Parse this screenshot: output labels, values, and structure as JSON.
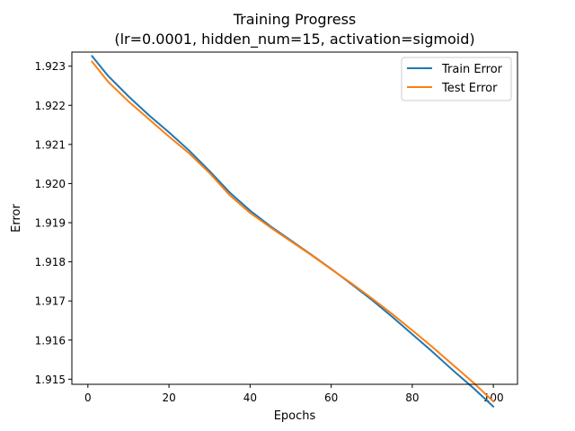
{
  "chart_data": {
    "type": "line",
    "title": "Training Progress",
    "subtitle": "(lr=0.0001, hidden_num=15, activation=sigmoid)",
    "xlabel": "Epochs",
    "ylabel": "Error",
    "xlim": [
      -3.95,
      105.95
    ],
    "ylim": [
      1.91487,
      1.92336
    ],
    "xticks": [
      0,
      20,
      40,
      60,
      80,
      100
    ],
    "yticks": [
      1.915,
      1.916,
      1.917,
      1.918,
      1.919,
      1.92,
      1.921,
      1.922,
      1.923
    ],
    "grid": false,
    "legend_position": "top-right",
    "series": [
      {
        "name": "Train Error",
        "color": "#1f77b4",
        "x": [
          1,
          5,
          10,
          15,
          20,
          25,
          30,
          35,
          40,
          45,
          50,
          55,
          60,
          65,
          70,
          75,
          80,
          85,
          90,
          95,
          100
        ],
        "y": [
          1.92326,
          1.92275,
          1.92223,
          1.92175,
          1.92131,
          1.92084,
          1.92032,
          1.91977,
          1.91931,
          1.91891,
          1.91855,
          1.91819,
          1.91782,
          1.91743,
          1.91703,
          1.9166,
          1.91615,
          1.9157,
          1.91523,
          1.91478,
          1.9143
        ]
      },
      {
        "name": "Test Error",
        "color": "#ff7f0e",
        "x": [
          1,
          5,
          10,
          15,
          20,
          25,
          30,
          35,
          40,
          45,
          50,
          55,
          60,
          65,
          70,
          75,
          80,
          85,
          90,
          95,
          100
        ],
        "y": [
          1.92312,
          1.9226,
          1.9221,
          1.92165,
          1.9212,
          1.92077,
          1.92027,
          1.9197,
          1.91925,
          1.91888,
          1.91853,
          1.91818,
          1.91781,
          1.91745,
          1.91707,
          1.91667,
          1.91625,
          1.91582,
          1.91537,
          1.91492,
          1.91443
        ]
      }
    ]
  }
}
